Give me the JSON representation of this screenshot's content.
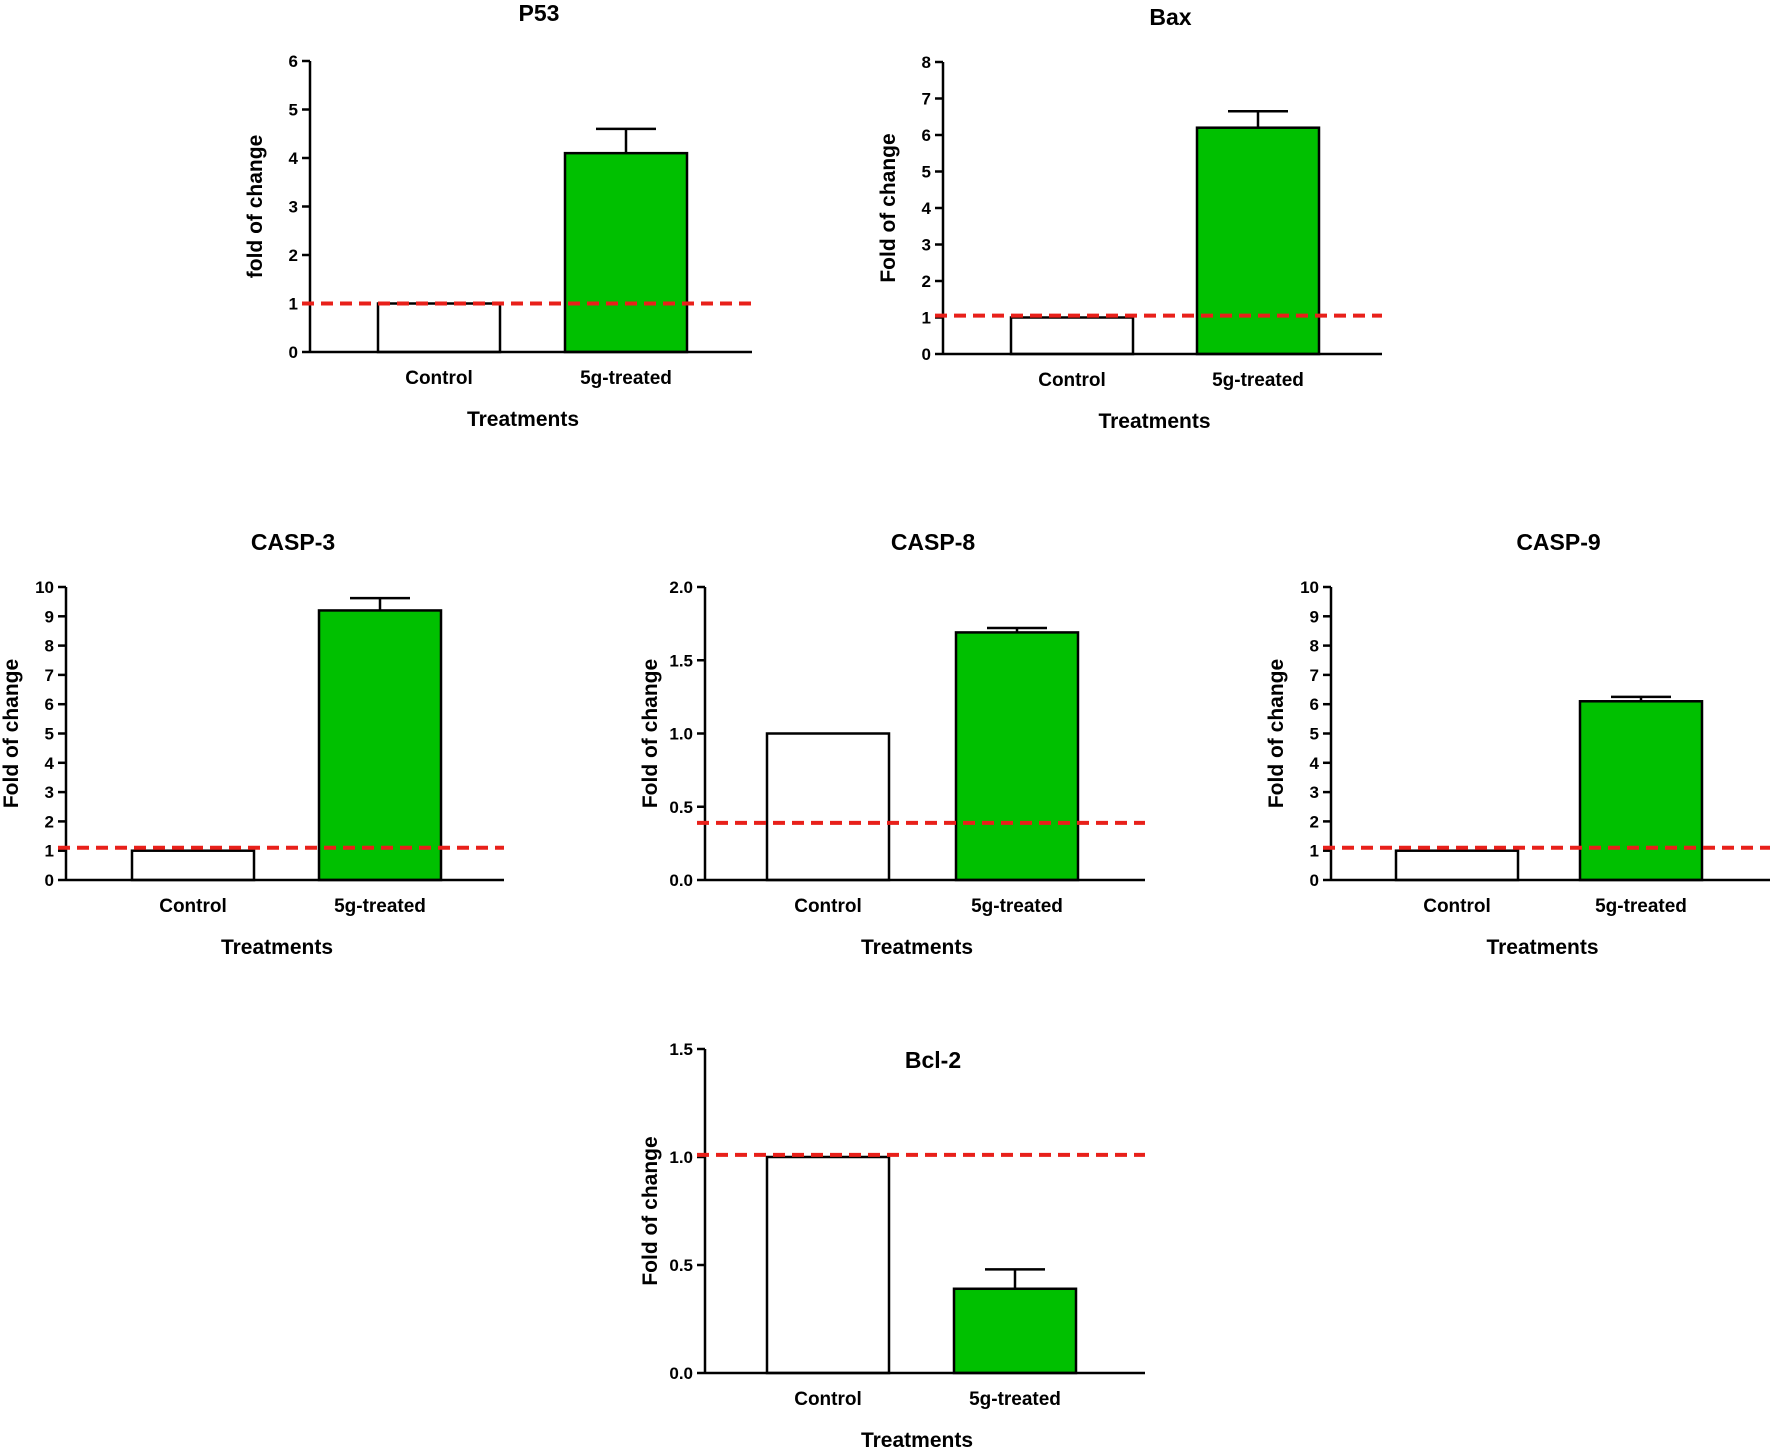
{
  "colors": {
    "control_fill": "#ffffff",
    "treated_fill": "#00c000",
    "reference_line": "#e8201a",
    "axis": "#000000"
  },
  "chart_data": [
    {
      "type": "bar",
      "title": "P53",
      "xlabel": "Treatments",
      "ylabel": "fold of change",
      "categories": [
        "Control",
        "5g-treated"
      ],
      "values": [
        1.0,
        4.1
      ],
      "error": [
        0,
        0.5
      ],
      "ylim": [
        0,
        6
      ],
      "yticks": [
        "0",
        "1",
        "2",
        "3",
        "4",
        "5",
        "6"
      ],
      "reference_line": 1.0,
      "grid": false
    },
    {
      "type": "bar",
      "title": "Bax",
      "xlabel": "Treatments",
      "ylabel": "Fold of change",
      "categories": [
        "Control",
        "5g-treated"
      ],
      "values": [
        1.0,
        6.2
      ],
      "error": [
        0,
        0.45
      ],
      "ylim": [
        0,
        8
      ],
      "yticks": [
        "0",
        "1",
        "2",
        "3",
        "4",
        "5",
        "6",
        "7",
        "8"
      ],
      "reference_line": 1.05,
      "grid": false
    },
    {
      "type": "bar",
      "title": "CASP-3",
      "xlabel": "Treatments",
      "ylabel": "Fold of change",
      "categories": [
        "Control",
        "5g-treated"
      ],
      "values": [
        1.0,
        9.2
      ],
      "error": [
        0,
        0.42
      ],
      "ylim": [
        0,
        10
      ],
      "yticks": [
        "0",
        "1",
        "2",
        "3",
        "4",
        "5",
        "6",
        "7",
        "8",
        "9",
        "10"
      ],
      "reference_line": 1.1,
      "grid": false
    },
    {
      "type": "bar",
      "title": "CASP-8",
      "xlabel": "Treatments",
      "ylabel": "Fold of change",
      "categories": [
        "Control",
        "5g-treated"
      ],
      "values": [
        1.0,
        1.69
      ],
      "error": [
        0,
        0.03
      ],
      "ylim": [
        0,
        2.0
      ],
      "yticks": [
        "0.0",
        "0.5",
        "1.0",
        "1.5",
        "2.0"
      ],
      "reference_line": 0.39,
      "grid": false
    },
    {
      "type": "bar",
      "title": "CASP-9",
      "xlabel": "Treatments",
      "ylabel": "Fold of change",
      "categories": [
        "Control",
        "5g-treated"
      ],
      "values": [
        1.0,
        6.1
      ],
      "error": [
        0,
        0.15
      ],
      "ylim": [
        0,
        10
      ],
      "yticks": [
        "0",
        "1",
        "2",
        "3",
        "4",
        "5",
        "6",
        "7",
        "8",
        "9",
        "10"
      ],
      "reference_line": 1.1,
      "grid": false
    },
    {
      "type": "bar",
      "title": "Bcl-2",
      "xlabel": "Treatments",
      "ylabel": "Fold of change",
      "categories": [
        "Control",
        "5g-treated"
      ],
      "values": [
        1.0,
        0.39
      ],
      "error": [
        0,
        0.09
      ],
      "ylim": [
        0,
        1.5
      ],
      "yticks": [
        "0.0",
        "0.5",
        "1.0",
        "1.5"
      ],
      "reference_line": 1.01,
      "grid": false
    }
  ]
}
